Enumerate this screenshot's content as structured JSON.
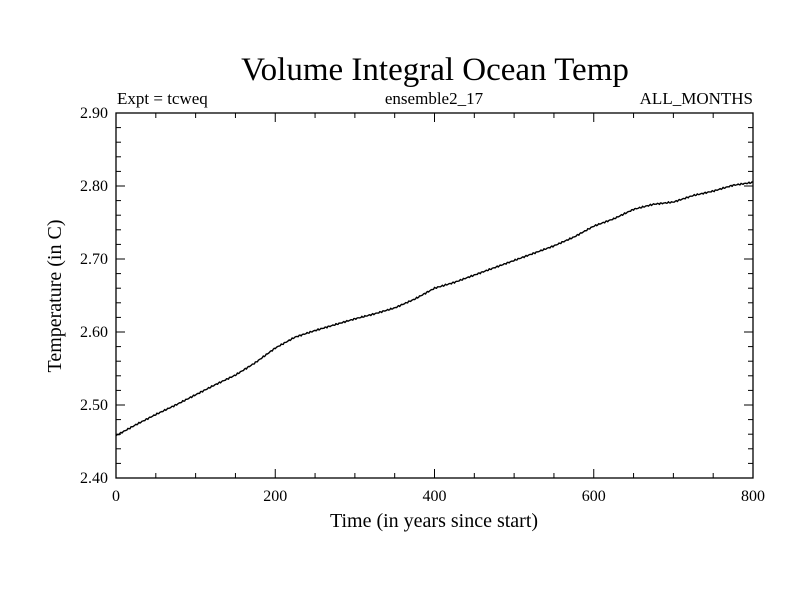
{
  "chart_data": {
    "type": "line",
    "title": "Volume Integral Ocean Temp",
    "subtitle_left": "Expt = tcweq",
    "subtitle_center": "ensemble2_17",
    "subtitle_right": "ALL_MONTHS",
    "xlabel": "Time (in years since start)",
    "ylabel": "Temperature (in C)",
    "xlim": [
      0,
      800
    ],
    "ylim": [
      2.4,
      2.9
    ],
    "x_ticks": [
      0,
      200,
      400,
      600,
      800
    ],
    "x_tick_labels": [
      "0",
      "200",
      "400",
      "600",
      "800"
    ],
    "y_ticks": [
      2.4,
      2.5,
      2.6,
      2.7,
      2.8,
      2.9
    ],
    "y_tick_labels": [
      "2.40",
      "2.50",
      "2.60",
      "2.70",
      "2.80",
      "2.90"
    ],
    "x_minor_step": 50,
    "y_minor_step": 0.02,
    "grid": false,
    "series": [
      {
        "name": "Volume Integral Ocean Temp",
        "color": "#000000",
        "x": [
          0,
          25,
          50,
          75,
          100,
          125,
          150,
          175,
          200,
          225,
          250,
          275,
          300,
          325,
          350,
          375,
          400,
          425,
          450,
          475,
          500,
          525,
          550,
          575,
          600,
          625,
          650,
          675,
          700,
          725,
          750,
          775,
          800
        ],
        "y": [
          2.458,
          2.473,
          2.487,
          2.5,
          2.514,
          2.528,
          2.541,
          2.558,
          2.578,
          2.593,
          2.602,
          2.61,
          2.618,
          2.625,
          2.633,
          2.645,
          2.66,
          2.668,
          2.678,
          2.688,
          2.698,
          2.708,
          2.718,
          2.73,
          2.745,
          2.755,
          2.768,
          2.775,
          2.778,
          2.787,
          2.793,
          2.801,
          2.805
        ]
      }
    ]
  }
}
